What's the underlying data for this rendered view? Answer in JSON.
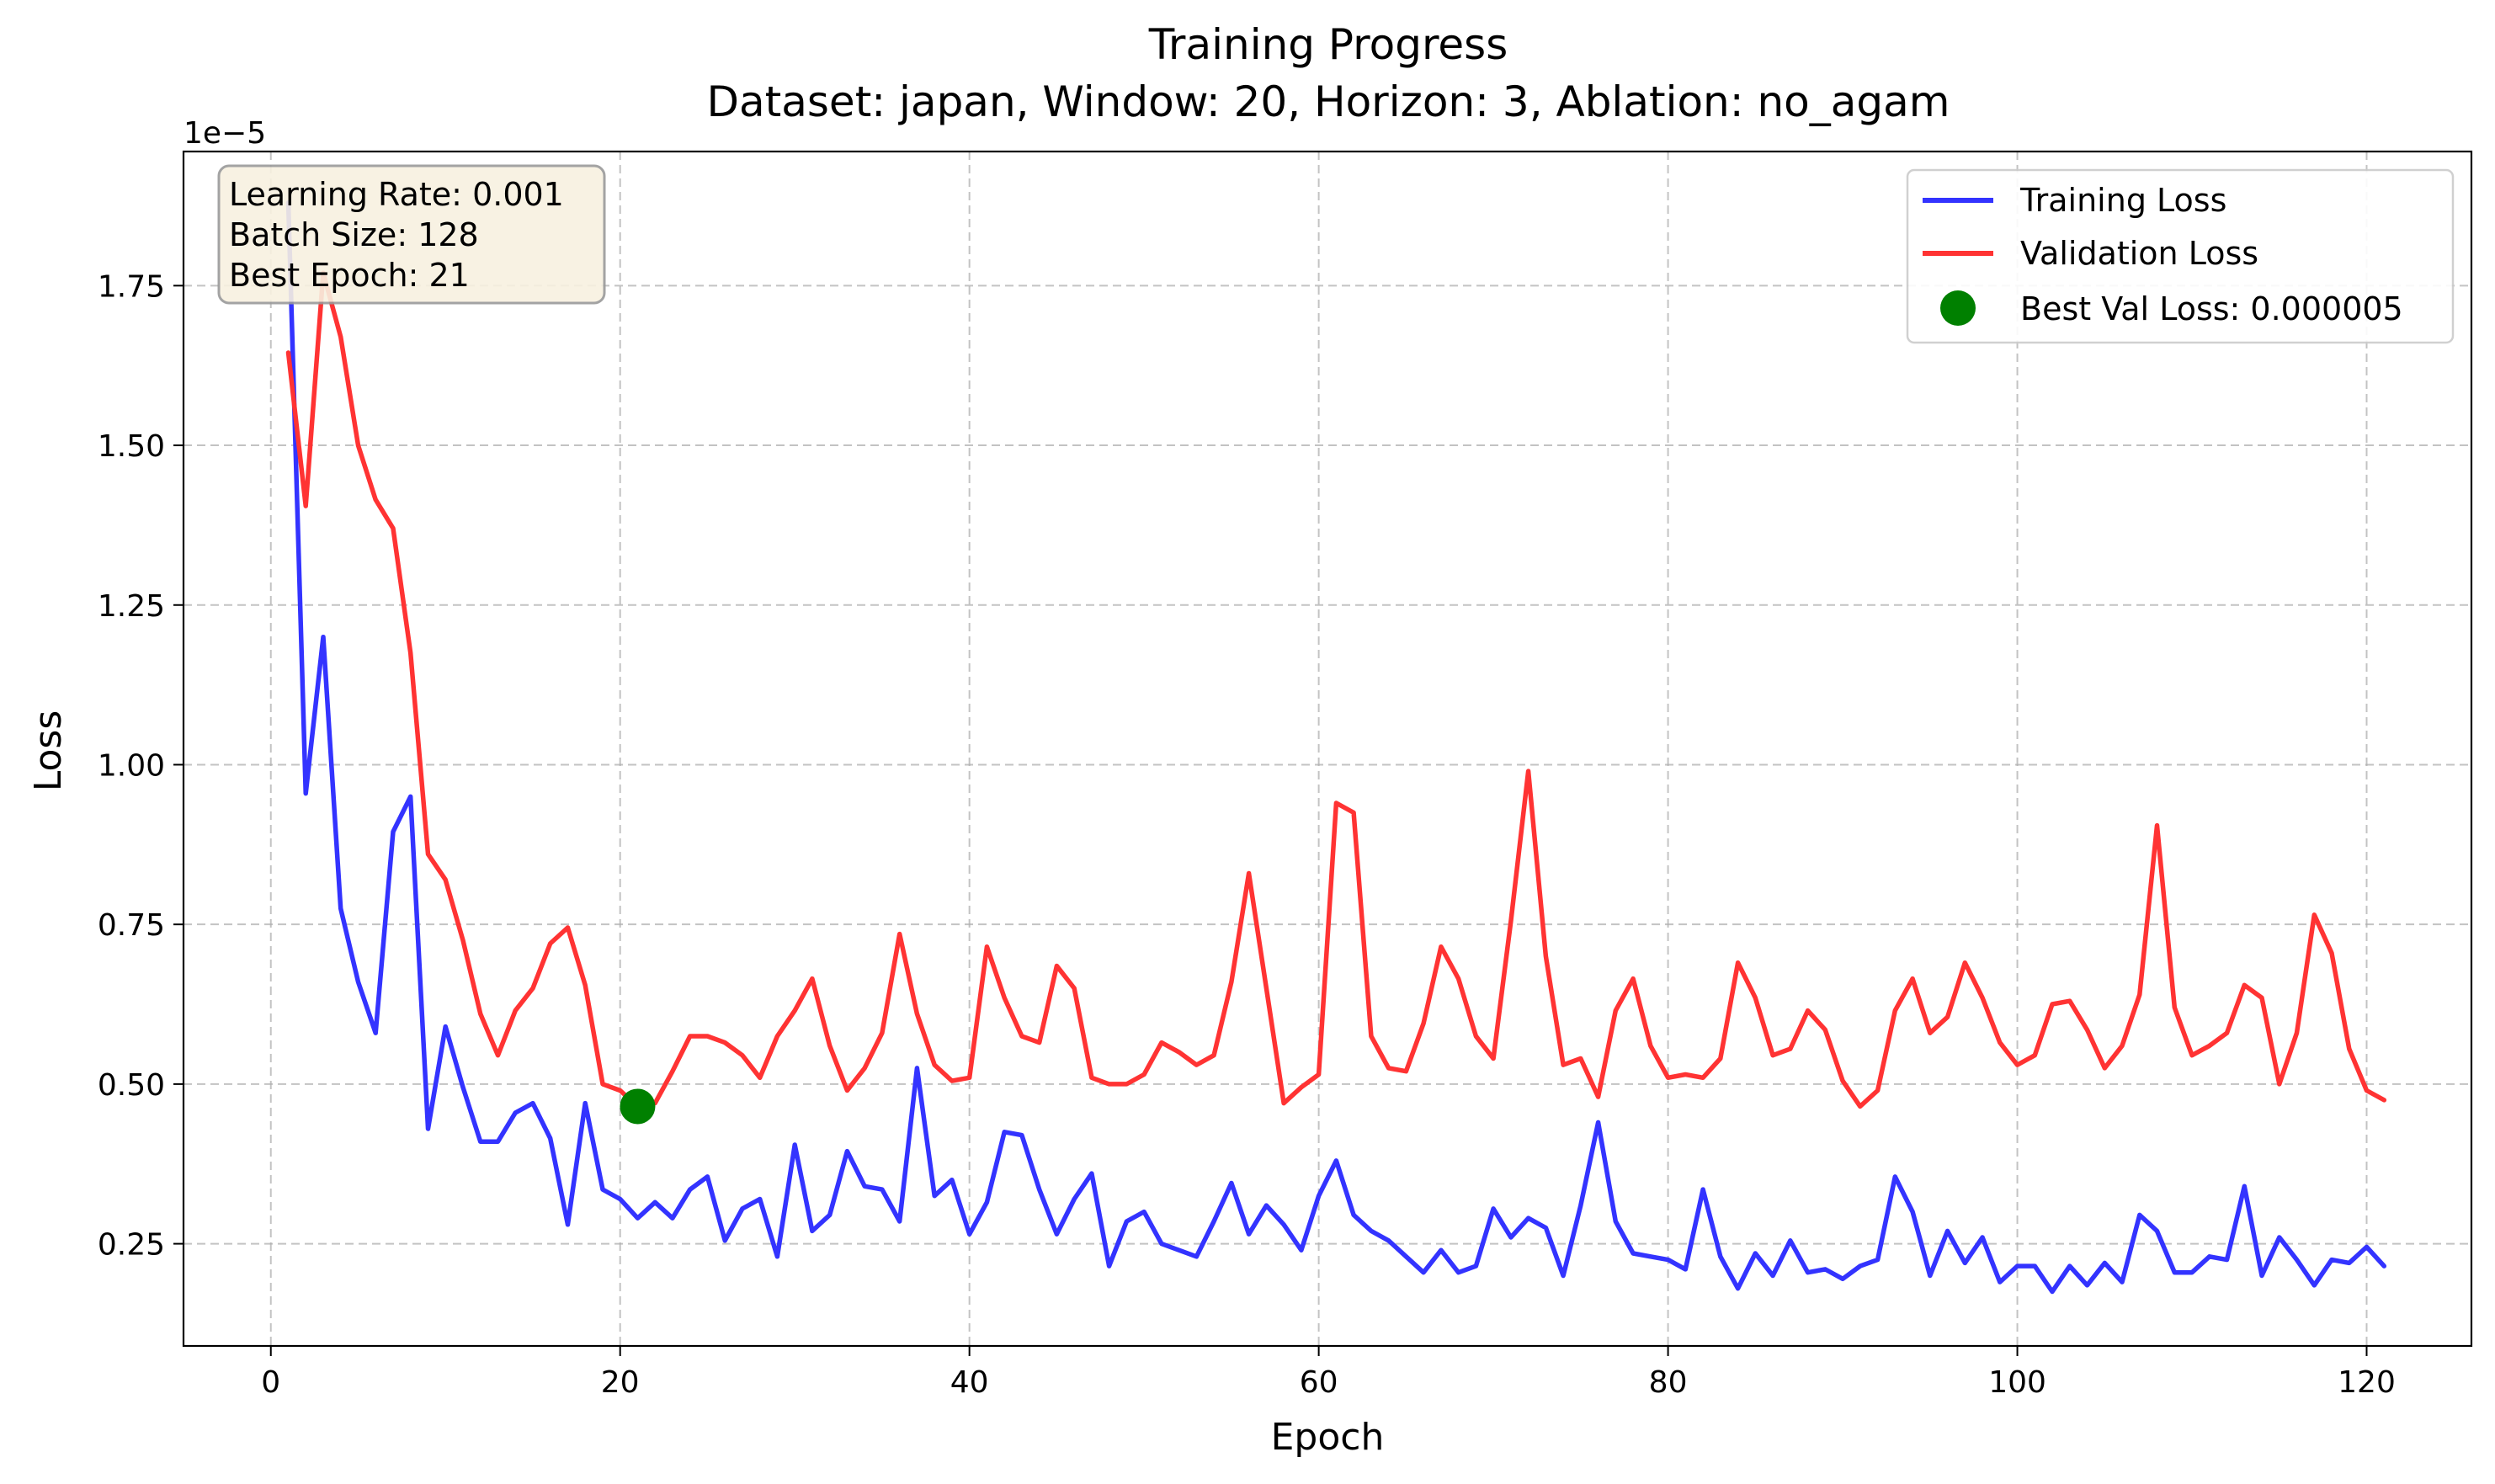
{
  "chart_data": {
    "type": "line",
    "title": "Training Progress",
    "subtitle": "Dataset: japan, Window: 20, Horizon: 3, Ablation: no_agam",
    "xlabel": "Epoch",
    "ylabel": "Loss",
    "y_scale_label": "1e−5",
    "y_scale": 1e-05,
    "xlim": [
      -5.0,
      126.0
    ],
    "ylim": [
      0.09,
      1.96
    ],
    "x_ticks": [
      0,
      20,
      40,
      60,
      80,
      100,
      120
    ],
    "y_ticks": [
      0.25,
      0.5,
      0.75,
      1.0,
      1.25,
      1.5,
      1.75
    ],
    "x_tick_labels": [
      "0",
      "20",
      "40",
      "60",
      "80",
      "100",
      "120"
    ],
    "y_tick_labels": [
      "0.25",
      "0.50",
      "0.75",
      "1.00",
      "1.25",
      "1.50",
      "1.75"
    ],
    "grid": true,
    "legend_position": "top-right",
    "x": [
      1,
      2,
      3,
      4,
      5,
      6,
      7,
      8,
      9,
      10,
      11,
      12,
      13,
      14,
      15,
      16,
      17,
      18,
      19,
      20,
      21,
      22,
      23,
      24,
      25,
      26,
      27,
      28,
      29,
      30,
      31,
      32,
      33,
      34,
      35,
      36,
      37,
      38,
      39,
      40,
      41,
      42,
      43,
      44,
      45,
      46,
      47,
      48,
      49,
      50,
      51,
      52,
      53,
      54,
      55,
      56,
      57,
      58,
      59,
      60,
      61,
      62,
      63,
      64,
      65,
      66,
      67,
      68,
      69,
      70,
      71,
      72,
      73,
      74,
      75,
      76,
      77,
      78,
      79,
      80,
      81,
      82,
      83,
      84,
      85,
      86,
      87,
      88,
      89,
      90,
      91,
      92,
      93,
      94,
      95,
      96,
      97,
      98,
      99,
      100,
      101,
      102,
      103,
      104,
      105,
      106,
      107,
      108,
      109,
      110,
      111,
      112,
      113,
      114,
      115,
      116,
      117,
      118,
      119,
      120,
      121
    ],
    "series": [
      {
        "name": "Training Loss",
        "color": "#0000ee",
        "values": [
          1.88,
          0.955,
          1.2,
          0.775,
          0.66,
          0.58,
          0.895,
          0.95,
          0.43,
          0.59,
          0.495,
          0.41,
          0.41,
          0.455,
          0.47,
          0.415,
          0.28,
          0.47,
          0.335,
          0.32,
          0.29,
          0.315,
          0.29,
          0.335,
          0.355,
          0.255,
          0.305,
          0.32,
          0.23,
          0.405,
          0.27,
          0.295,
          0.395,
          0.34,
          0.335,
          0.285,
          0.525,
          0.325,
          0.35,
          0.265,
          0.315,
          0.425,
          0.42,
          0.335,
          0.265,
          0.32,
          0.36,
          0.215,
          0.285,
          0.3,
          0.25,
          0.24,
          0.23,
          0.285,
          0.345,
          0.265,
          0.31,
          0.28,
          0.24,
          0.325,
          0.38,
          0.295,
          0.27,
          0.255,
          0.23,
          0.205,
          0.24,
          0.205,
          0.215,
          0.305,
          0.26,
          0.29,
          0.275,
          0.2,
          0.31,
          0.44,
          0.285,
          0.235,
          0.23,
          0.225,
          0.21,
          0.335,
          0.23,
          0.18,
          0.235,
          0.2,
          0.255,
          0.205,
          0.21,
          0.195,
          0.215,
          0.225,
          0.355,
          0.3,
          0.2,
          0.27,
          0.22,
          0.26,
          0.19,
          0.215,
          0.215,
          0.175,
          0.215,
          0.185,
          0.22,
          0.19,
          0.295,
          0.27,
          0.205,
          0.205,
          0.23,
          0.225,
          0.34,
          0.2,
          0.26,
          0.225,
          0.185,
          0.225,
          0.22,
          0.245,
          0.215
        ]
      },
      {
        "name": "Validation Loss",
        "color": "#ee0000",
        "values": [
          1.645,
          1.405,
          1.77,
          1.67,
          1.5,
          1.415,
          1.37,
          1.175,
          0.86,
          0.82,
          0.725,
          0.61,
          0.545,
          0.615,
          0.65,
          0.72,
          0.745,
          0.655,
          0.5,
          0.49,
          0.465,
          0.47,
          0.52,
          0.575,
          0.575,
          0.565,
          0.545,
          0.51,
          0.575,
          0.615,
          0.665,
          0.56,
          0.49,
          0.525,
          0.58,
          0.735,
          0.61,
          0.53,
          0.505,
          0.51,
          0.715,
          0.635,
          0.575,
          0.565,
          0.685,
          0.65,
          0.51,
          0.5,
          0.5,
          0.515,
          0.565,
          0.55,
          0.53,
          0.545,
          0.66,
          0.83,
          0.65,
          0.47,
          0.495,
          0.515,
          0.94,
          0.925,
          0.575,
          0.525,
          0.52,
          0.595,
          0.715,
          0.665,
          0.575,
          0.54,
          0.755,
          0.99,
          0.7,
          0.53,
          0.54,
          0.48,
          0.615,
          0.665,
          0.56,
          0.51,
          0.515,
          0.51,
          0.54,
          0.69,
          0.635,
          0.545,
          0.555,
          0.615,
          0.585,
          0.505,
          0.465,
          0.49,
          0.615,
          0.665,
          0.58,
          0.605,
          0.69,
          0.635,
          0.565,
          0.53,
          0.545,
          0.625,
          0.63,
          0.585,
          0.525,
          0.56,
          0.64,
          0.905,
          0.62,
          0.545,
          0.56,
          0.58,
          0.655,
          0.635,
          0.5,
          0.58,
          0.765,
          0.705,
          0.555,
          0.49,
          0.475
        ]
      }
    ],
    "best_point": {
      "label": "Best Val Loss: 0.000005",
      "epoch": 21,
      "value": 0.465,
      "color": "#008000"
    },
    "info_box": [
      "Learning Rate: 0.001",
      "Batch Size: 128",
      "Best Epoch: 21"
    ]
  }
}
